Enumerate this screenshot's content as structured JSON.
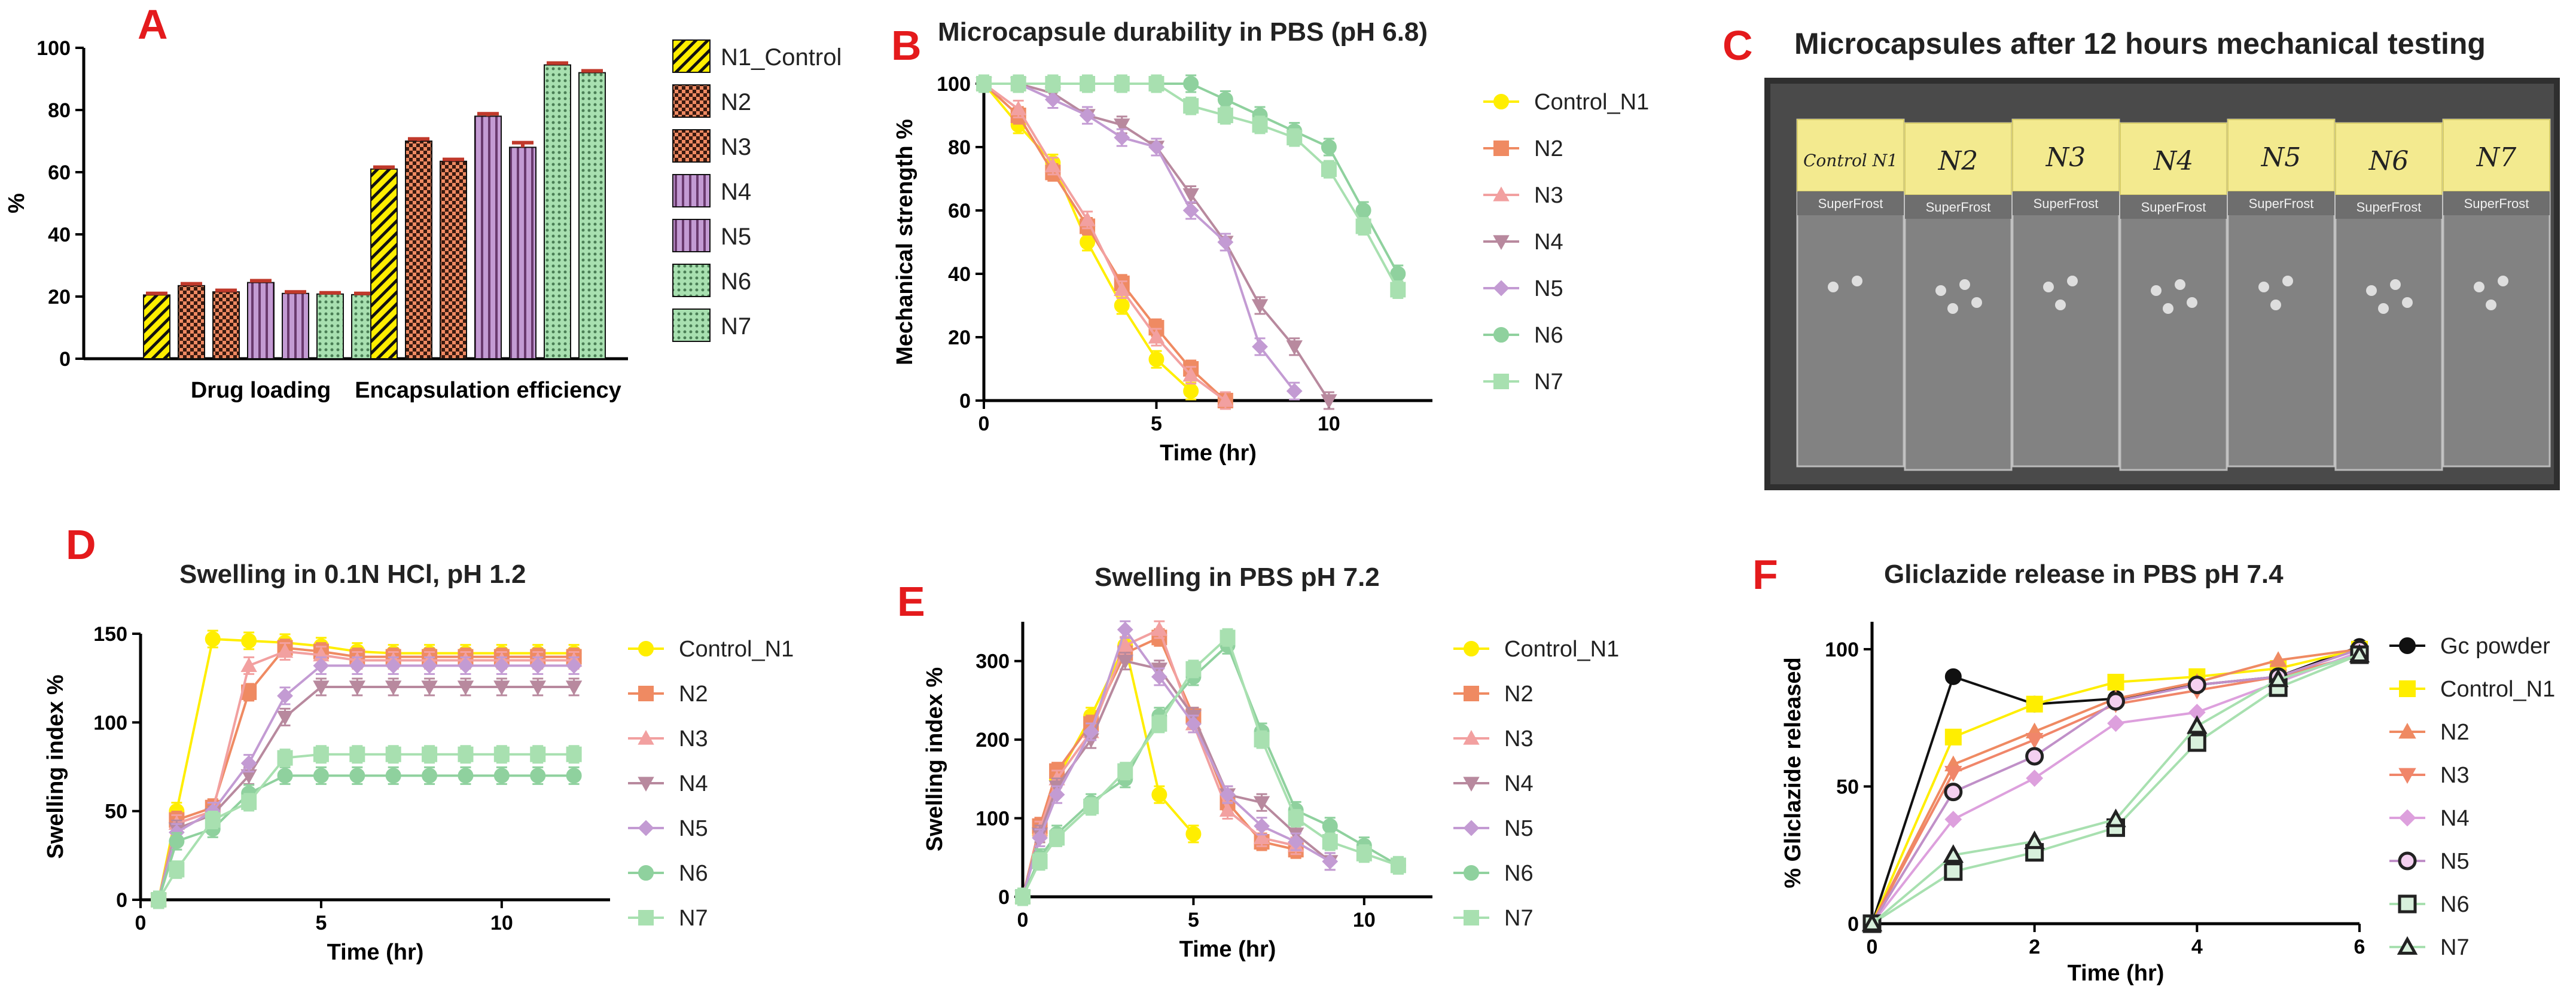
{
  "colors": {
    "yellow": "#ffee00",
    "salmon": "#ef8a62",
    "pink": "#f2a0a0",
    "mauve": "#b8899e",
    "lilac": "#c39bd3",
    "green": "#8fd19e",
    "lightgreen": "#a8e0b0",
    "black": "#111111",
    "red": "#e41a1c"
  },
  "photo": {
    "letter": "C",
    "title": "Microcapsules after 12 hours mechanical testing",
    "slides": [
      {
        "label": "Control N1",
        "brand": "SuperFrost"
      },
      {
        "label": "N2",
        "brand": "SuperFrost"
      },
      {
        "label": "N3",
        "brand": "SuperFrost"
      },
      {
        "label": "N4",
        "brand": "SuperFrost"
      },
      {
        "label": "N5",
        "brand": "SuperFrost"
      },
      {
        "label": "N6",
        "brand": "SuperFrost"
      },
      {
        "label": "N7",
        "brand": "SuperFrost"
      }
    ]
  },
  "chart_data": [
    {
      "id": "A",
      "letter": "A",
      "type": "bar",
      "title": "",
      "xlabel": "",
      "ylabel": "%",
      "ylim": [
        0,
        100
      ],
      "yticks": [
        0,
        20,
        40,
        60,
        80,
        100
      ],
      "categories": [
        "Drug loading",
        "Encapsulation efficiency"
      ],
      "series": [
        {
          "name": "N1_Control",
          "values": [
            20.5,
            61
          ],
          "errors": [
            0.5,
            0.6
          ]
        },
        {
          "name": "N2",
          "values": [
            23.5,
            70
          ],
          "errors": [
            0.6,
            0.7
          ]
        },
        {
          "name": "N3",
          "values": [
            21.5,
            63.5
          ],
          "errors": [
            0.5,
            0.6
          ]
        },
        {
          "name": "N4",
          "values": [
            24.5,
            78
          ],
          "errors": [
            0.6,
            0.8
          ]
        },
        {
          "name": "N5",
          "values": [
            21,
            68
          ],
          "errors": [
            0.5,
            1.5
          ]
        },
        {
          "name": "N6",
          "values": [
            20.8,
            94.5
          ],
          "errors": [
            0.4,
            0.6
          ]
        },
        {
          "name": "N7",
          "values": [
            20.6,
            92
          ],
          "errors": [
            0.4,
            0.6
          ]
        }
      ],
      "legend": "right"
    },
    {
      "id": "B",
      "letter": "B",
      "type": "line",
      "title": "Microcapsule durability in PBS (pH 6.8)",
      "xlabel": "Time (hr)",
      "ylabel": "Mechanical strength %",
      "xlim": [
        0,
        13
      ],
      "ylim": [
        0,
        100
      ],
      "xticks": [
        0,
        5,
        10
      ],
      "yticks": [
        0,
        20,
        40,
        60,
        80,
        100
      ],
      "series": [
        {
          "name": "Control_N1",
          "x": [
            0,
            1,
            2,
            3,
            4,
            5,
            6
          ],
          "values": [
            100,
            87,
            75,
            50,
            30,
            13,
            3
          ]
        },
        {
          "name": "N2",
          "x": [
            0,
            1,
            2,
            3,
            4,
            5,
            6,
            7
          ],
          "values": [
            100,
            90,
            72,
            55,
            37,
            23,
            10,
            0
          ]
        },
        {
          "name": "N3",
          "x": [
            0,
            1,
            2,
            3,
            4,
            5,
            6,
            7
          ],
          "values": [
            100,
            92,
            74,
            57,
            35,
            20,
            8,
            0
          ]
        },
        {
          "name": "N4",
          "x": [
            0,
            1,
            2,
            3,
            4,
            5,
            6,
            7,
            8,
            9,
            10
          ],
          "values": [
            100,
            100,
            97,
            90,
            87,
            80,
            65,
            50,
            30,
            17,
            0
          ]
        },
        {
          "name": "N5",
          "x": [
            0,
            1,
            2,
            3,
            4,
            5,
            6,
            7,
            8,
            9
          ],
          "values": [
            100,
            100,
            95,
            90,
            83,
            80,
            60,
            50,
            17,
            3
          ]
        },
        {
          "name": "N6",
          "x": [
            0,
            1,
            2,
            3,
            4,
            5,
            6,
            7,
            8,
            9,
            10,
            11,
            12
          ],
          "values": [
            100,
            100,
            100,
            100,
            100,
            100,
            100,
            95,
            90,
            85,
            80,
            60,
            40
          ]
        },
        {
          "name": "N7",
          "x": [
            0,
            1,
            2,
            3,
            4,
            5,
            6,
            7,
            8,
            9,
            10,
            11,
            12
          ],
          "values": [
            100,
            100,
            100,
            100,
            100,
            100,
            93,
            90,
            87,
            83,
            73,
            55,
            35
          ]
        }
      ],
      "legend": "right"
    },
    {
      "id": "D",
      "letter": "D",
      "type": "line",
      "title": "Swelling in 0.1N HCl, pH 1.2",
      "xlabel": "Time (hr)",
      "ylabel": "Swelling index %",
      "xlim": [
        0,
        13
      ],
      "ylim": [
        0,
        150
      ],
      "xticks": [
        0,
        5,
        10
      ],
      "yticks": [
        0,
        50,
        100,
        150
      ],
      "series": [
        {
          "name": "Control_N1",
          "x": [
            0.5,
            1,
            2,
            3,
            4,
            5,
            6,
            7,
            8,
            9,
            10,
            11,
            12
          ],
          "values": [
            0,
            50,
            147,
            146,
            145,
            143,
            140,
            139,
            139,
            139,
            139,
            139,
            139
          ]
        },
        {
          "name": "N2",
          "x": [
            0.5,
            1,
            2,
            3,
            4,
            5,
            6,
            7,
            8,
            9,
            10,
            11,
            12
          ],
          "values": [
            0,
            45,
            52,
            117,
            142,
            140,
            137,
            137,
            137,
            137,
            137,
            137,
            137
          ]
        },
        {
          "name": "N3",
          "x": [
            0.5,
            1,
            2,
            3,
            4,
            5,
            6,
            7,
            8,
            9,
            10,
            11,
            12
          ],
          "values": [
            0,
            43,
            50,
            132,
            140,
            138,
            135,
            135,
            135,
            135,
            135,
            135,
            135
          ]
        },
        {
          "name": "N4",
          "x": [
            0.5,
            1,
            2,
            3,
            4,
            5,
            6,
            7,
            8,
            9,
            10,
            11,
            12
          ],
          "values": [
            0,
            40,
            48,
            70,
            103,
            120,
            120,
            120,
            120,
            120,
            120,
            120,
            120
          ]
        },
        {
          "name": "N5",
          "x": [
            0.5,
            1,
            2,
            3,
            4,
            5,
            6,
            7,
            8,
            9,
            10,
            11,
            12
          ],
          "values": [
            0,
            38,
            50,
            77,
            115,
            132,
            132,
            132,
            132,
            132,
            132,
            132,
            132
          ]
        },
        {
          "name": "N6",
          "x": [
            0.5,
            1,
            2,
            3,
            4,
            5,
            6,
            7,
            8,
            9,
            10,
            11,
            12
          ],
          "values": [
            0,
            33,
            40,
            60,
            70,
            70,
            70,
            70,
            70,
            70,
            70,
            70,
            70
          ]
        },
        {
          "name": "N7",
          "x": [
            0.5,
            1,
            2,
            3,
            4,
            5,
            6,
            7,
            8,
            9,
            10,
            11,
            12
          ],
          "values": [
            0,
            17,
            45,
            55,
            80,
            82,
            82,
            82,
            82,
            82,
            82,
            82,
            82
          ]
        }
      ],
      "legend": "right"
    },
    {
      "id": "E",
      "letter": "E",
      "type": "line",
      "title": "Swelling in PBS pH 7.2",
      "xlabel": "Time (hr)",
      "ylabel": "Swelling index %",
      "xlim": [
        0,
        12
      ],
      "ylim": [
        0,
        350
      ],
      "xticks": [
        0,
        5,
        10
      ],
      "yticks": [
        0,
        100,
        200,
        300
      ],
      "series": [
        {
          "name": "Control_N1",
          "x": [
            0,
            0.5,
            1,
            2,
            3,
            4,
            5
          ],
          "values": [
            0,
            80,
            150,
            230,
            320,
            130,
            80
          ]
        },
        {
          "name": "N2",
          "x": [
            0,
            0.5,
            1,
            2,
            3,
            4,
            5,
            6,
            7,
            8
          ],
          "values": [
            0,
            90,
            160,
            220,
            310,
            330,
            230,
            120,
            70,
            60
          ]
        },
        {
          "name": "N3",
          "x": [
            0,
            0.5,
            1,
            2,
            3,
            4,
            5,
            6,
            7,
            8
          ],
          "values": [
            0,
            85,
            150,
            210,
            320,
            340,
            220,
            110,
            75,
            65
          ]
        },
        {
          "name": "N4",
          "x": [
            0,
            0.5,
            1,
            2,
            3,
            4,
            5,
            6,
            7,
            8,
            9
          ],
          "values": [
            0,
            80,
            140,
            200,
            300,
            290,
            230,
            130,
            120,
            80,
            45
          ]
        },
        {
          "name": "N5",
          "x": [
            0,
            0.5,
            1,
            2,
            3,
            4,
            5,
            6,
            7,
            8,
            9
          ],
          "values": [
            0,
            75,
            130,
            210,
            340,
            280,
            220,
            130,
            90,
            70,
            45
          ]
        },
        {
          "name": "N6",
          "x": [
            0,
            0.5,
            1,
            2,
            3,
            4,
            5,
            6,
            7,
            8,
            9,
            10,
            11
          ],
          "values": [
            0,
            50,
            80,
            120,
            150,
            230,
            280,
            320,
            210,
            110,
            90,
            65,
            40
          ]
        },
        {
          "name": "N7",
          "x": [
            0,
            0.5,
            1,
            2,
            3,
            4,
            5,
            6,
            7,
            8,
            9,
            10,
            11
          ],
          "values": [
            0,
            45,
            75,
            115,
            160,
            220,
            290,
            330,
            200,
            100,
            70,
            55,
            40
          ]
        }
      ],
      "legend": "right"
    },
    {
      "id": "F",
      "letter": "F",
      "type": "line",
      "title": "Gliclazide release in PBS pH 7.4",
      "xlabel": "Time (hr)",
      "ylabel": "% Gliclazide released",
      "xlim": [
        0,
        6
      ],
      "ylim": [
        0,
        110
      ],
      "xticks": [
        0,
        2,
        4,
        6
      ],
      "yticks": [
        0,
        50,
        100
      ],
      "series": [
        {
          "name": "Gc powder",
          "x": [
            0,
            1,
            2,
            3,
            4,
            5,
            6
          ],
          "values": [
            0,
            90,
            80,
            82,
            87,
            90,
            101
          ]
        },
        {
          "name": "Control_N1",
          "x": [
            0,
            1,
            2,
            3,
            4,
            5,
            6
          ],
          "values": [
            0,
            68,
            80,
            88,
            90,
            93,
            100
          ]
        },
        {
          "name": "N2",
          "x": [
            0,
            1,
            2,
            3,
            4,
            5,
            6
          ],
          "values": [
            0,
            58,
            70,
            82,
            88,
            96,
            100
          ]
        },
        {
          "name": "N3",
          "x": [
            0,
            1,
            2,
            3,
            4,
            5,
            6
          ],
          "values": [
            0,
            55,
            67,
            80,
            85,
            90,
            98
          ]
        },
        {
          "name": "N4",
          "x": [
            0,
            1,
            2,
            3,
            4,
            5,
            6
          ],
          "values": [
            0,
            38,
            53,
            73,
            77,
            88,
            99
          ]
        },
        {
          "name": "N5",
          "x": [
            0,
            1,
            2,
            3,
            4,
            5,
            6
          ],
          "values": [
            0,
            48,
            61,
            81,
            87,
            90,
            100
          ]
        },
        {
          "name": "N6",
          "x": [
            0,
            1,
            2,
            3,
            4,
            5,
            6
          ],
          "values": [
            0,
            19,
            26,
            35,
            66,
            86,
            98
          ]
        },
        {
          "name": "N7",
          "x": [
            0,
            1,
            2,
            3,
            4,
            5,
            6
          ],
          "values": [
            0,
            25,
            30,
            38,
            72,
            89,
            98
          ]
        }
      ],
      "legend": "right"
    }
  ]
}
